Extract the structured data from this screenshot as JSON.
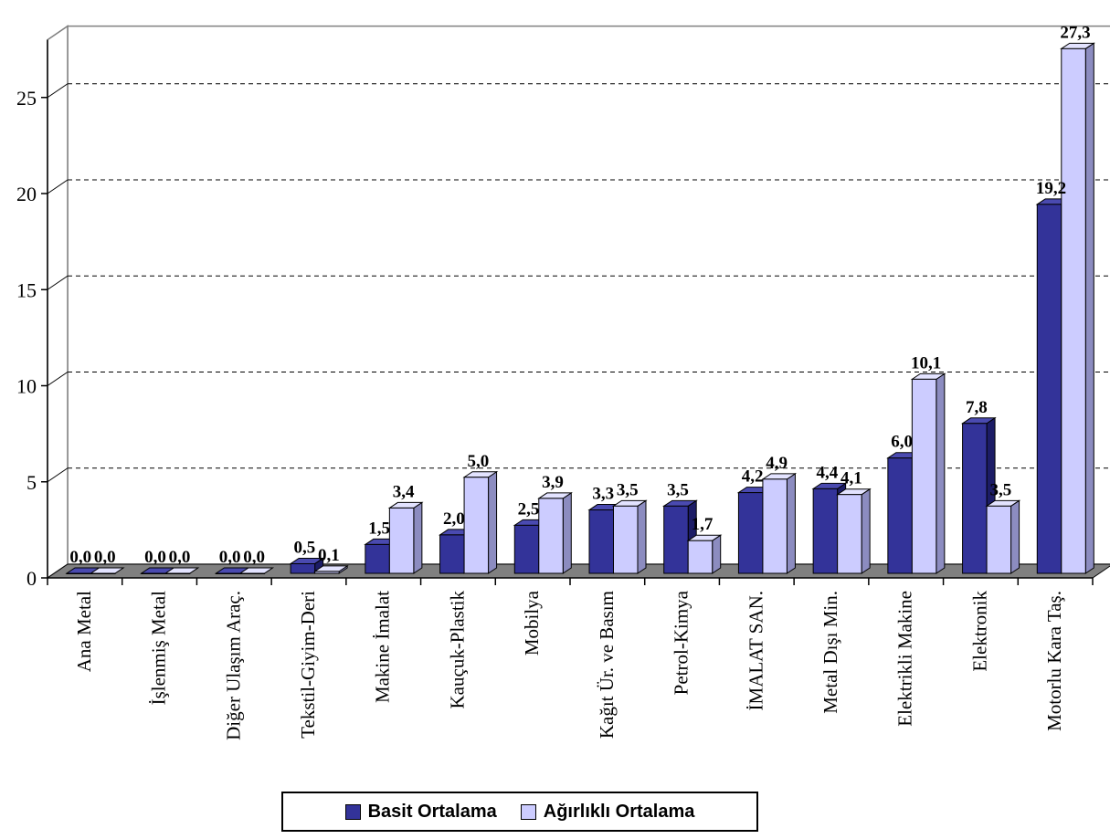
{
  "chart_data": {
    "type": "bar",
    "title": "",
    "xlabel": "",
    "ylabel": "",
    "ylim": [
      0,
      28
    ],
    "yticks": [
      "0",
      "5",
      "10",
      "15",
      "20",
      "25"
    ],
    "grid": true,
    "legend_position": "bottom",
    "categories": [
      "Ana Metal",
      "İşlenmiş Metal",
      "Diğer Ulaşım Araç.",
      "Tekstil-Giyim-Deri",
      "Makine İmalat",
      "Kauçuk-Plastik",
      "Mobilya",
      "Kağıt Ür. ve Basım",
      "Petrol-Kimya",
      "İMALAT SAN.",
      "Metal Dışı Min.",
      "Elektrikli Makine",
      "Elektronik",
      "Motorlu Kara Taş."
    ],
    "series": [
      {
        "name": "Basit Ortalama",
        "color": "#333399",
        "values": [
          0.0,
          0.0,
          0.0,
          0.5,
          1.5,
          2.0,
          2.5,
          3.3,
          3.5,
          4.2,
          4.4,
          6.0,
          7.8,
          19.2
        ],
        "labels": [
          "0,0",
          "0,0",
          "0,0",
          "0,5",
          "1,5",
          "2,0",
          "2,5",
          "3,3",
          "3,5",
          "4,2",
          "4,4",
          "6,0",
          "7,8",
          "19,2"
        ]
      },
      {
        "name": "Ağırlıklı Ortalama",
        "color": "#CCCCFF",
        "values": [
          0.0,
          0.0,
          0.0,
          0.1,
          3.4,
          5.0,
          3.9,
          3.5,
          1.7,
          4.9,
          4.1,
          10.1,
          3.5,
          27.3
        ],
        "labels": [
          "0,0",
          "0,0",
          "0,0",
          "0,1",
          "3,4",
          "5,0",
          "3,9",
          "3,5",
          "1,7",
          "4,9",
          "4,1",
          "10,1",
          "3,5",
          "27,3"
        ]
      }
    ]
  }
}
